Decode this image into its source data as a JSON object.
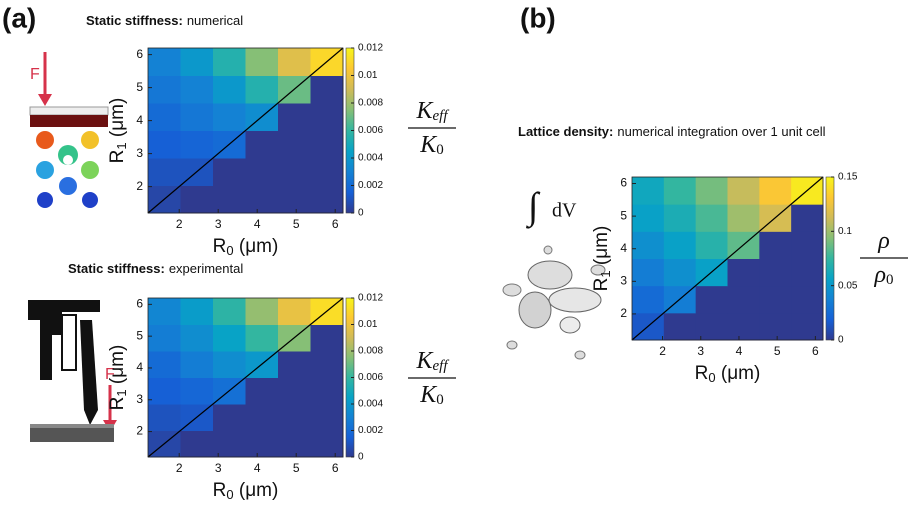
{
  "panel_labels": [
    "(a)",
    "(b)"
  ],
  "annotations": {
    "force_top": "F",
    "force_bottom": "F",
    "integral": "∫",
    "integrand": "dV"
  },
  "chart_data": [
    {
      "type": "heatmap",
      "title": "Static stiffness:",
      "subtitle": "numerical",
      "xlabel": {
        "symbol": "R",
        "sub": "0",
        "unit": " (μm)"
      },
      "ylabel": {
        "symbol": "R",
        "sub": "1",
        "unit": " (μm)"
      },
      "xlim": [
        1.2,
        6.2
      ],
      "ylim": [
        1.2,
        6.2
      ],
      "xticks": [
        2,
        3,
        4,
        5,
        6
      ],
      "yticks": [
        2,
        3,
        4,
        5,
        6
      ],
      "zlim": [
        0,
        0.012
      ],
      "zticks": [
        0,
        0.002,
        0.004,
        0.006,
        0.008,
        0.01,
        0.012
      ],
      "colorbar_label": {
        "num": "K",
        "num_sub": "eff",
        "den": "K",
        "den_sub": "0"
      },
      "colormap": [
        "#2f3a8f",
        "#1660d6",
        "#1482d4",
        "#08a3c6",
        "#33b6a0",
        "#86bf76",
        "#d0bb58",
        "#fdc832",
        "#f6f51a"
      ],
      "z": [
        [
          0.0005,
          0,
          0,
          0,
          0,
          0
        ],
        [
          0.001,
          0.001,
          0,
          0,
          0,
          0
        ],
        [
          0.0015,
          0.0017,
          0.002,
          0,
          0,
          0
        ],
        [
          0.002,
          0.0025,
          0.003,
          0.0035,
          0,
          0
        ],
        [
          0.0025,
          0.003,
          0.004,
          0.0055,
          0.007,
          0
        ],
        [
          0.003,
          0.004,
          0.0055,
          0.0075,
          0.0095,
          0.011
        ]
      ]
    },
    {
      "type": "heatmap",
      "title": "Static stiffness:",
      "subtitle": "experimental",
      "xlabel": {
        "symbol": "R",
        "sub": "0",
        "unit": " (μm)"
      },
      "ylabel": {
        "symbol": "R",
        "sub": "1",
        "unit": " (μm)"
      },
      "xlim": [
        1.2,
        6.2
      ],
      "ylim": [
        1.2,
        6.2
      ],
      "xticks": [
        2,
        3,
        4,
        5,
        6
      ],
      "yticks": [
        2,
        3,
        4,
        5,
        6
      ],
      "zlim": [
        0,
        0.012
      ],
      "zticks": [
        0,
        0.002,
        0.004,
        0.006,
        0.008,
        0.01,
        0.012
      ],
      "colorbar_label": {
        "num": "K",
        "num_sub": "eff",
        "den": "K",
        "den_sub": "0"
      },
      "colormap": [
        "#2f3a8f",
        "#1660d6",
        "#1482d4",
        "#08a3c6",
        "#33b6a0",
        "#86bf76",
        "#d0bb58",
        "#fdc832",
        "#f6f51a"
      ],
      "z": [
        [
          0.0005,
          0,
          0,
          0,
          0,
          0
        ],
        [
          0.001,
          0.0012,
          0,
          0,
          0,
          0
        ],
        [
          0.0015,
          0.0018,
          0.0022,
          0,
          0,
          0
        ],
        [
          0.002,
          0.0028,
          0.0035,
          0.004,
          0,
          0
        ],
        [
          0.0028,
          0.0035,
          0.0045,
          0.006,
          0.0075,
          0
        ],
        [
          0.0032,
          0.0042,
          0.0058,
          0.0078,
          0.0098,
          0.0112
        ]
      ]
    },
    {
      "type": "heatmap",
      "title": "Lattice density:",
      "subtitle": "numerical integration over 1 unit cell",
      "xlabel": {
        "symbol": "R",
        "sub": "0",
        "unit": " (μm)"
      },
      "ylabel": {
        "symbol": "R",
        "sub": "1",
        "unit": " (μm)"
      },
      "xlim": [
        1.2,
        6.2
      ],
      "ylim": [
        1.2,
        6.2
      ],
      "xticks": [
        2,
        3,
        4,
        5,
        6
      ],
      "yticks": [
        2,
        3,
        4,
        5,
        6
      ],
      "zlim": [
        0,
        0.15
      ],
      "zticks": [
        0,
        0.05,
        0.1,
        0.15
      ],
      "colorbar_label": {
        "num": "ρ",
        "den": "ρ",
        "den_sub": "0"
      },
      "colormap": [
        "#2f3a8f",
        "#1660d6",
        "#1482d4",
        "#08a3c6",
        "#33b6a0",
        "#86bf76",
        "#d0bb58",
        "#fdc832",
        "#f6f51a"
      ],
      "z": [
        [
          0.015,
          0,
          0,
          0,
          0,
          0
        ],
        [
          0.025,
          0.035,
          0,
          0,
          0,
          0
        ],
        [
          0.035,
          0.045,
          0.055,
          0,
          0,
          0
        ],
        [
          0.045,
          0.055,
          0.07,
          0.085,
          0,
          0
        ],
        [
          0.055,
          0.065,
          0.08,
          0.1,
          0.115,
          0
        ],
        [
          0.06,
          0.075,
          0.09,
          0.11,
          0.13,
          0.145
        ]
      ]
    }
  ]
}
